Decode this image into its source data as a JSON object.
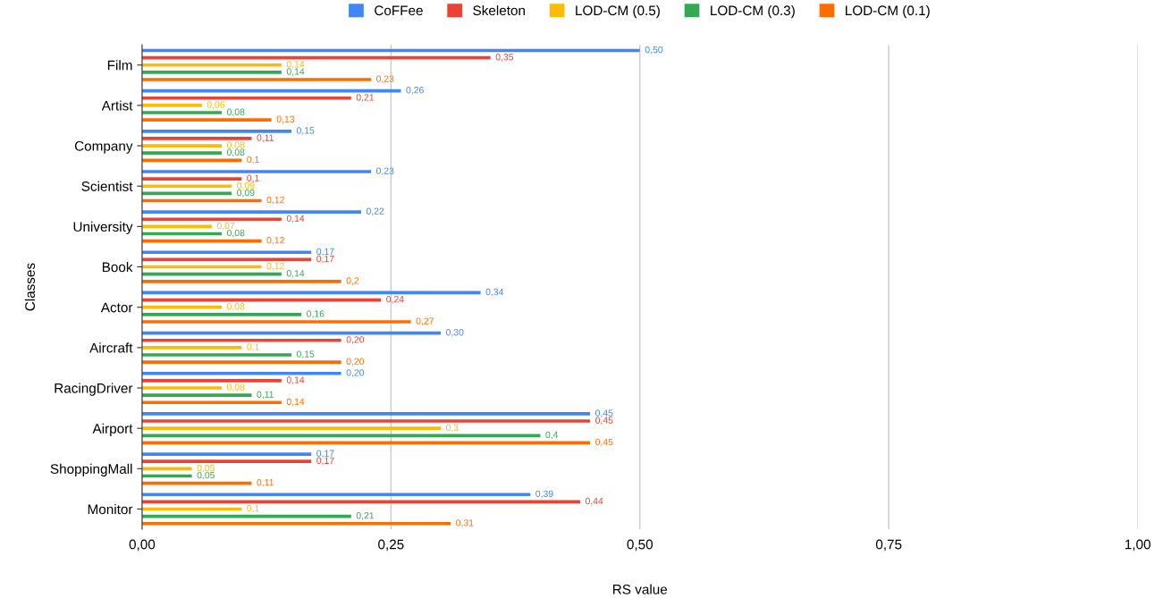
{
  "chart_data": {
    "type": "bar",
    "orientation": "horizontal",
    "xlabel": "RS value",
    "ylabel": "Classes",
    "legend": "top",
    "grid": "x",
    "categories": [
      "Film",
      "Artist",
      "Company",
      "Scientist",
      "University",
      "Book",
      "Actor",
      "Aircraft",
      "RacingDriver",
      "Airport",
      "ShoppingMall",
      "Monitor"
    ],
    "xlim": [
      0,
      1
    ],
    "xticks": [
      {
        "value": 0,
        "label": "0,00"
      },
      {
        "value": 0.25,
        "label": "0,25"
      },
      {
        "value": 0.5,
        "label": "0,50"
      },
      {
        "value": 0.75,
        "label": "0,75"
      },
      {
        "value": 1,
        "label": "1,00"
      }
    ],
    "series": [
      {
        "name": "CoFFee",
        "color": "#4285f4",
        "values": [
          0.5,
          0.26,
          0.15,
          0.23,
          0.22,
          0.17,
          0.34,
          0.3,
          0.2,
          0.45,
          0.17,
          0.39
        ],
        "value_labels": [
          "0,50",
          "0,26",
          "0,15",
          "0,23",
          "0,22",
          "0,17",
          "0,34",
          "0,30",
          "0,20",
          "0,45",
          "0,17",
          "0,39"
        ]
      },
      {
        "name": "Skeleton",
        "color": "#ea4335",
        "values": [
          0.35,
          0.21,
          0.11,
          0.1,
          0.14,
          0.17,
          0.24,
          0.2,
          0.14,
          0.45,
          0.17,
          0.44
        ],
        "value_labels": [
          "0,35",
          "0,21",
          "0,11",
          "0,1",
          "0,14",
          "0,17",
          "0,24",
          "0,20",
          "0,14",
          "0,45",
          "0,17",
          "0,44"
        ]
      },
      {
        "name": "LOD-CM (0.5)",
        "color": "#fbbc04",
        "values": [
          0.14,
          0.06,
          0.08,
          0.09,
          0.07,
          0.12,
          0.08,
          0.1,
          0.08,
          0.3,
          0.05,
          0.1
        ],
        "value_labels": [
          "0,14",
          "0,06",
          "0,08",
          "0,09",
          "0,07",
          "0,12",
          "0,08",
          "0,1",
          "0,08",
          "0,3",
          "0,05",
          "0,1"
        ]
      },
      {
        "name": "LOD-CM (0.3)",
        "color": "#34a853",
        "values": [
          0.14,
          0.08,
          0.08,
          0.09,
          0.08,
          0.14,
          0.16,
          0.15,
          0.11,
          0.4,
          0.05,
          0.21
        ],
        "value_labels": [
          "0,14",
          "0,08",
          "0,08",
          "0,09",
          "0,08",
          "0,14",
          "0,16",
          "0,15",
          "0,11",
          "0,4",
          "0,05",
          "0,21"
        ]
      },
      {
        "name": "LOD-CM (0.1)",
        "color": "#ff6d01",
        "values": [
          0.23,
          0.13,
          0.1,
          0.12,
          0.12,
          0.2,
          0.27,
          0.2,
          0.14,
          0.45,
          0.11,
          0.31
        ],
        "value_labels": [
          "0,23",
          "0,13",
          "0,1",
          "0,12",
          "0,12",
          "0,2",
          "0,27",
          "0,20",
          "0,14",
          "0,45",
          "0,11",
          "0,31"
        ]
      }
    ]
  }
}
